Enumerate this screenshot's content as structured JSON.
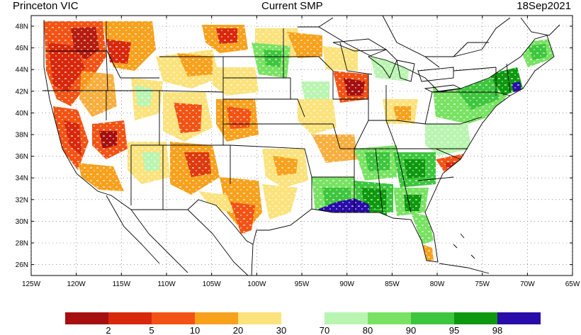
{
  "header": {
    "left": "Princeton VIC",
    "center": "Current SMP",
    "right": "18Sep2021"
  },
  "lat_ticks": [
    "48N",
    "46N",
    "44N",
    "42N",
    "40N",
    "38N",
    "36N",
    "34N",
    "32N",
    "30N",
    "28N",
    "26N"
  ],
  "lon_ticks": [
    "125W",
    "120W",
    "115W",
    "110W",
    "105W",
    "100W",
    "95W",
    "90W",
    "85W",
    "80W",
    "75W",
    "70W",
    "65W"
  ],
  "colorbar": {
    "dry": {
      "colors": [
        "#a50f0f",
        "#d8280c",
        "#f25314",
        "#f7a11d",
        "#fbe27b"
      ],
      "labels": [
        "2",
        "5",
        "10",
        "20",
        "30"
      ]
    },
    "wet": {
      "colors": [
        "#b9f5b0",
        "#79e263",
        "#3dc63d",
        "#0d990d",
        "#2a0ca8"
      ],
      "labels": [
        "70",
        "80",
        "90",
        "95",
        "98"
      ]
    }
  }
}
